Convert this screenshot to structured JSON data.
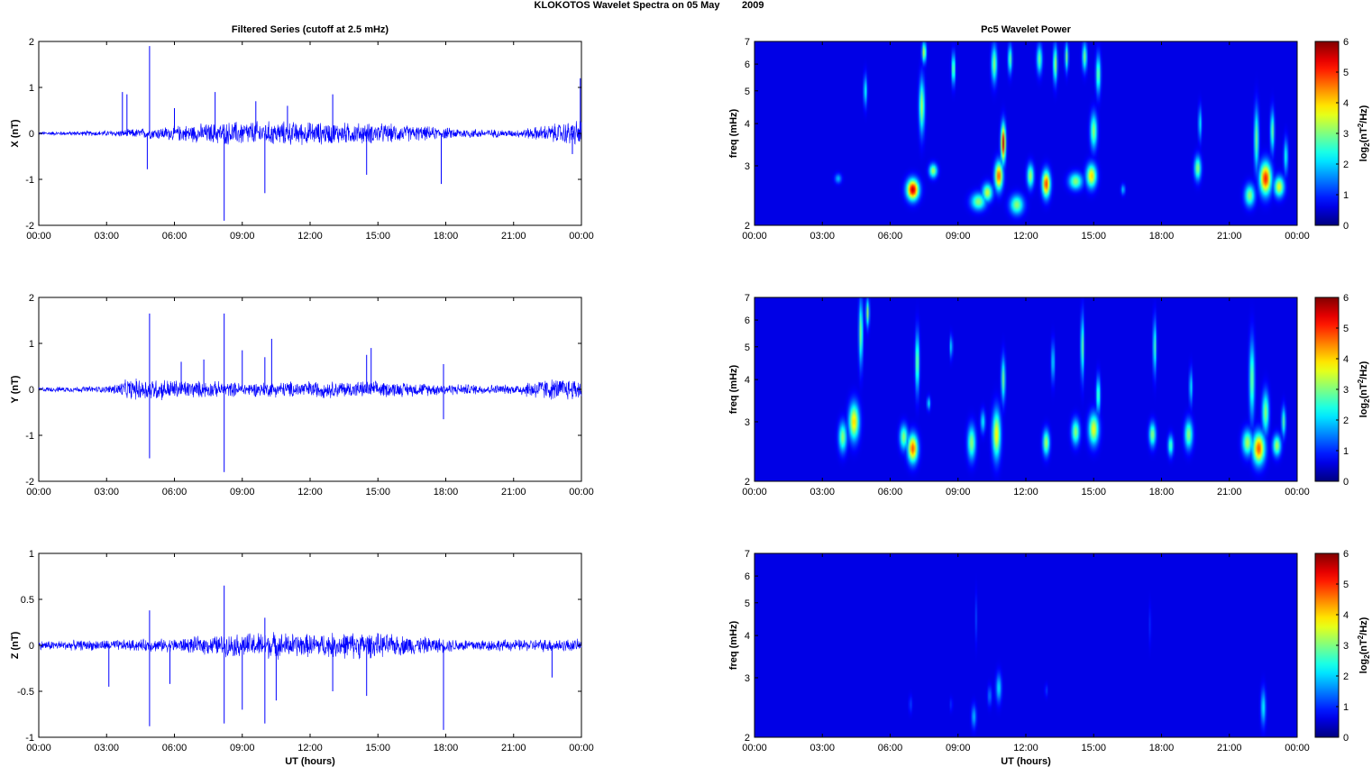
{
  "figure": {
    "title": "KLOKOTOS Wavelet Spectra on 05 May        2009",
    "left_title": "Filtered Series (cutoff at 2.5 mHz)",
    "right_title": "Pc5 Wavelet Power",
    "xlabel": "UT (hours)",
    "freq_label": "freq (mHz)",
    "colorbar_label_base": "log",
    "colorbar_label_sub": "2",
    "colorbar_label_paren": "(nT",
    "colorbar_label_sup": "2",
    "colorbar_label_tail": "/Hz)"
  },
  "colors": {
    "trace": "#0000ff",
    "background": "#ffffff",
    "colormap": "jet"
  },
  "chart_data": [
    {
      "type": "line",
      "component": "X",
      "ylabel": "X (nT)",
      "xlim": [
        0,
        24
      ],
      "ylim": [
        -2,
        2
      ],
      "yticks": [
        -2,
        -1,
        0,
        1,
        2
      ],
      "xticks": [
        "00:00",
        "03:00",
        "06:00",
        "09:00",
        "12:00",
        "15:00",
        "18:00",
        "21:00",
        "00:00"
      ],
      "baseline_amplitude": [
        [
          0,
          0.03
        ],
        [
          3,
          0.05
        ],
        [
          5,
          0.1
        ],
        [
          6.5,
          0.15
        ],
        [
          9,
          0.22
        ],
        [
          12,
          0.2
        ],
        [
          15,
          0.18
        ],
        [
          18,
          0.1
        ],
        [
          21,
          0.06
        ],
        [
          22.5,
          0.15
        ],
        [
          24,
          0.25
        ]
      ],
      "spikes": [
        [
          3.7,
          0.9
        ],
        [
          3.9,
          0.85
        ],
        [
          4.8,
          -0.78
        ],
        [
          4.9,
          1.9
        ],
        [
          6.0,
          0.55
        ],
        [
          7.8,
          0.9
        ],
        [
          8.2,
          -1.9
        ],
        [
          9.6,
          0.7
        ],
        [
          10.0,
          -1.3
        ],
        [
          11.0,
          0.6
        ],
        [
          13.0,
          0.85
        ],
        [
          14.5,
          -0.9
        ],
        [
          17.8,
          -1.1
        ],
        [
          23.6,
          -0.45
        ],
        [
          23.95,
          1.2
        ]
      ]
    },
    {
      "type": "line",
      "component": "Y",
      "ylabel": "Y (nT)",
      "xlim": [
        0,
        24
      ],
      "ylim": [
        -2,
        2
      ],
      "yticks": [
        -2,
        -1,
        0,
        1,
        2
      ],
      "xticks": [
        "00:00",
        "03:00",
        "06:00",
        "09:00",
        "12:00",
        "15:00",
        "18:00",
        "21:00",
        "00:00"
      ],
      "baseline_amplitude": [
        [
          0,
          0.04
        ],
        [
          3,
          0.06
        ],
        [
          4,
          0.18
        ],
        [
          5,
          0.2
        ],
        [
          7,
          0.15
        ],
        [
          9,
          0.12
        ],
        [
          12,
          0.15
        ],
        [
          15,
          0.14
        ],
        [
          18,
          0.1
        ],
        [
          21,
          0.08
        ],
        [
          22,
          0.18
        ],
        [
          24,
          0.2
        ]
      ],
      "spikes": [
        [
          4.9,
          1.65
        ],
        [
          4.9,
          -1.5
        ],
        [
          6.3,
          0.6
        ],
        [
          7.3,
          0.65
        ],
        [
          8.2,
          1.65
        ],
        [
          8.2,
          -1.8
        ],
        [
          9.0,
          0.85
        ],
        [
          10.0,
          0.7
        ],
        [
          10.3,
          1.1
        ],
        [
          14.5,
          0.75
        ],
        [
          14.7,
          0.9
        ],
        [
          17.9,
          0.55
        ],
        [
          17.9,
          -0.65
        ]
      ]
    },
    {
      "type": "line",
      "component": "Z",
      "ylabel": "Z (nT)",
      "xlim": [
        0,
        24
      ],
      "ylim": [
        -1,
        1
      ],
      "yticks": [
        -1,
        -0.5,
        0,
        0.5,
        1
      ],
      "xticks": [
        "00:00",
        "03:00",
        "06:00",
        "09:00",
        "12:00",
        "15:00",
        "18:00",
        "21:00",
        "00:00"
      ],
      "baseline_amplitude": [
        [
          0,
          0.04
        ],
        [
          4,
          0.05
        ],
        [
          6,
          0.06
        ],
        [
          8,
          0.09
        ],
        [
          10,
          0.12
        ],
        [
          12,
          0.1
        ],
        [
          14,
          0.12
        ],
        [
          16,
          0.09
        ],
        [
          18,
          0.06
        ],
        [
          21,
          0.05
        ],
        [
          23,
          0.06
        ],
        [
          24,
          0.05
        ]
      ],
      "spikes": [
        [
          3.1,
          -0.45
        ],
        [
          4.9,
          0.38
        ],
        [
          4.9,
          -0.88
        ],
        [
          5.8,
          -0.42
        ],
        [
          8.2,
          0.65
        ],
        [
          8.2,
          -0.85
        ],
        [
          9.0,
          -0.7
        ],
        [
          10.0,
          0.3
        ],
        [
          10.0,
          -0.85
        ],
        [
          10.5,
          -0.6
        ],
        [
          13.0,
          -0.5
        ],
        [
          14.5,
          -0.55
        ],
        [
          17.9,
          -0.92
        ],
        [
          22.7,
          -0.35
        ]
      ]
    },
    {
      "type": "heatmap",
      "component": "X",
      "ylabel": "freq (mHz)",
      "xlim": [
        0,
        24
      ],
      "ylim": [
        2,
        7
      ],
      "yscale": "log",
      "yticks": [
        2,
        3,
        4,
        5,
        6,
        7
      ],
      "colorbar": {
        "range": [
          0,
          6
        ],
        "ticks": [
          0,
          1,
          2,
          3,
          4,
          5,
          6
        ],
        "colormap": "jet"
      },
      "xticks": [
        "00:00",
        "03:00",
        "06:00",
        "09:00",
        "12:00",
        "15:00",
        "18:00",
        "21:00",
        "00:00"
      ],
      "blobs": [
        [
          3.7,
          2.75,
          0.1,
          0.06,
          1.4
        ],
        [
          4.9,
          5.0,
          0.05,
          0.35,
          2.0
        ],
        [
          7.0,
          2.55,
          0.18,
          0.12,
          5.6
        ],
        [
          7.4,
          4.5,
          0.08,
          0.55,
          3.0
        ],
        [
          7.5,
          6.5,
          0.06,
          0.3,
          3.2
        ],
        [
          7.9,
          2.9,
          0.12,
          0.09,
          3.0
        ],
        [
          8.8,
          5.8,
          0.05,
          0.4,
          3.0
        ],
        [
          9.9,
          2.35,
          0.22,
          0.09,
          2.8
        ],
        [
          10.3,
          2.5,
          0.15,
          0.1,
          3.2
        ],
        [
          10.6,
          6.0,
          0.08,
          0.5,
          2.8
        ],
        [
          10.8,
          2.8,
          0.12,
          0.18,
          4.6
        ],
        [
          11.0,
          3.5,
          0.07,
          0.3,
          5.6
        ],
        [
          11.3,
          6.2,
          0.06,
          0.4,
          2.5
        ],
        [
          11.6,
          2.3,
          0.2,
          0.1,
          2.8
        ],
        [
          12.2,
          2.8,
          0.1,
          0.15,
          3.0
        ],
        [
          12.6,
          6.2,
          0.08,
          0.4,
          2.5
        ],
        [
          12.9,
          2.65,
          0.12,
          0.16,
          4.8
        ],
        [
          13.3,
          6.0,
          0.06,
          0.5,
          3.0
        ],
        [
          13.8,
          6.3,
          0.05,
          0.4,
          2.6
        ],
        [
          14.2,
          2.7,
          0.2,
          0.1,
          2.8
        ],
        [
          14.6,
          6.3,
          0.07,
          0.4,
          2.6
        ],
        [
          14.9,
          2.8,
          0.15,
          0.15,
          3.8
        ],
        [
          15.2,
          5.6,
          0.07,
          0.5,
          2.6
        ],
        [
          15.0,
          3.8,
          0.1,
          0.3,
          2.8
        ],
        [
          16.3,
          2.55,
          0.06,
          0.06,
          1.5
        ],
        [
          19.6,
          2.95,
          0.1,
          0.16,
          2.8
        ],
        [
          19.7,
          4.0,
          0.05,
          0.3,
          1.8
        ],
        [
          21.9,
          2.45,
          0.15,
          0.12,
          2.8
        ],
        [
          22.2,
          3.6,
          0.07,
          0.5,
          2.6
        ],
        [
          22.6,
          2.75,
          0.17,
          0.2,
          5.0
        ],
        [
          22.9,
          3.8,
          0.06,
          0.35,
          2.6
        ],
        [
          23.2,
          2.6,
          0.15,
          0.12,
          3.4
        ],
        [
          23.5,
          3.2,
          0.06,
          0.25,
          2.0
        ]
      ]
    },
    {
      "type": "heatmap",
      "component": "Y",
      "ylabel": "freq (mHz)",
      "xlim": [
        0,
        24
      ],
      "ylim": [
        2,
        7
      ],
      "yscale": "log",
      "yticks": [
        2,
        3,
        4,
        5,
        6,
        7
      ],
      "colorbar": {
        "range": [
          0,
          6
        ],
        "ticks": [
          0,
          1,
          2,
          3,
          4,
          5,
          6
        ],
        "colormap": "jet"
      },
      "xticks": [
        "00:00",
        "03:00",
        "06:00",
        "09:00",
        "12:00",
        "15:00",
        "18:00",
        "21:00",
        "00:00"
      ],
      "blobs": [
        [
          3.9,
          2.7,
          0.12,
          0.18,
          2.8
        ],
        [
          4.4,
          3.0,
          0.15,
          0.25,
          3.8
        ],
        [
          4.7,
          5.5,
          0.06,
          0.8,
          2.8
        ],
        [
          5.0,
          6.3,
          0.05,
          0.4,
          2.8
        ],
        [
          6.6,
          2.7,
          0.12,
          0.15,
          2.8
        ],
        [
          7.0,
          2.5,
          0.15,
          0.16,
          4.6
        ],
        [
          7.2,
          4.5,
          0.06,
          0.6,
          2.8
        ],
        [
          7.7,
          3.4,
          0.05,
          0.1,
          1.8
        ],
        [
          8.7,
          5.0,
          0.04,
          0.25,
          1.8
        ],
        [
          9.6,
          2.6,
          0.12,
          0.2,
          2.8
        ],
        [
          10.1,
          3.0,
          0.07,
          0.15,
          1.8
        ],
        [
          10.7,
          2.75,
          0.12,
          0.3,
          3.6
        ],
        [
          11.0,
          4.0,
          0.06,
          0.4,
          2.6
        ],
        [
          12.9,
          2.6,
          0.1,
          0.15,
          3.0
        ],
        [
          13.2,
          4.5,
          0.05,
          0.4,
          1.8
        ],
        [
          14.2,
          2.8,
          0.12,
          0.16,
          2.8
        ],
        [
          14.5,
          5.0,
          0.05,
          0.7,
          2.6
        ],
        [
          15.0,
          2.85,
          0.15,
          0.2,
          3.4
        ],
        [
          15.2,
          3.6,
          0.06,
          0.3,
          2.5
        ],
        [
          17.6,
          2.75,
          0.1,
          0.15,
          2.8
        ],
        [
          17.7,
          5.0,
          0.05,
          0.6,
          2.4
        ],
        [
          18.4,
          2.55,
          0.08,
          0.12,
          2.4
        ],
        [
          19.2,
          2.75,
          0.12,
          0.18,
          2.8
        ],
        [
          19.3,
          3.8,
          0.05,
          0.3,
          1.8
        ],
        [
          21.8,
          2.6,
          0.15,
          0.15,
          3.0
        ],
        [
          22.0,
          4.0,
          0.08,
          0.7,
          2.6
        ],
        [
          22.3,
          2.5,
          0.18,
          0.18,
          4.6
        ],
        [
          22.6,
          3.2,
          0.1,
          0.3,
          2.8
        ],
        [
          23.1,
          2.55,
          0.12,
          0.12,
          3.0
        ],
        [
          23.4,
          3.0,
          0.06,
          0.2,
          2.4
        ]
      ]
    },
    {
      "type": "heatmap",
      "component": "Z",
      "ylabel": "freq (mHz)",
      "xlim": [
        0,
        24
      ],
      "ylim": [
        2,
        7
      ],
      "yscale": "log",
      "yticks": [
        2,
        3,
        4,
        5,
        6,
        7
      ],
      "colorbar": {
        "range": [
          0,
          6
        ],
        "ticks": [
          0,
          1,
          2,
          3,
          4,
          5,
          6
        ],
        "colormap": "jet"
      },
      "xticks": [
        "00:00",
        "03:00",
        "06:00",
        "09:00",
        "12:00",
        "15:00",
        "18:00",
        "21:00",
        "00:00"
      ],
      "blobs": [
        [
          9.7,
          2.3,
          0.07,
          0.12,
          1.4
        ],
        [
          10.4,
          2.65,
          0.06,
          0.12,
          1.0
        ],
        [
          10.8,
          2.8,
          0.08,
          0.18,
          1.7
        ],
        [
          9.8,
          4.5,
          0.03,
          0.5,
          0.6
        ],
        [
          12.9,
          2.75,
          0.04,
          0.08,
          0.6
        ],
        [
          17.5,
          4.3,
          0.03,
          0.4,
          0.5
        ],
        [
          22.5,
          2.45,
          0.07,
          0.2,
          1.8
        ],
        [
          6.9,
          2.5,
          0.05,
          0.1,
          0.6
        ],
        [
          8.7,
          2.5,
          0.04,
          0.08,
          0.5
        ]
      ]
    }
  ]
}
